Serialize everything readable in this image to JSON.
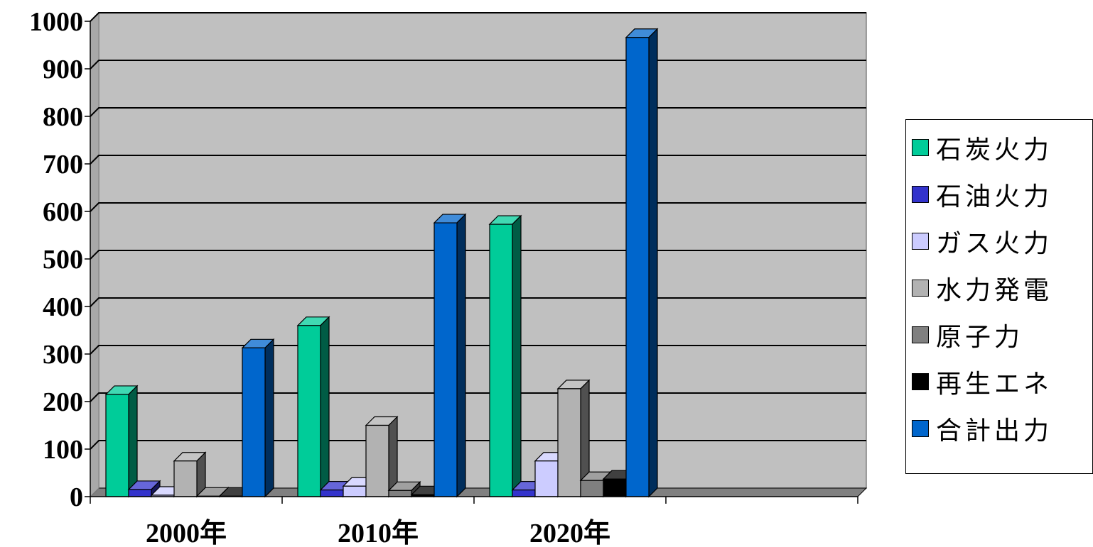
{
  "chart_data": {
    "type": "bar",
    "categories": [
      "2000年",
      "2010年",
      "2020年",
      ""
    ],
    "series": [
      {
        "name": "石炭火力",
        "color": "#00CC99",
        "values": [
          215,
          360,
          573,
          null
        ]
      },
      {
        "name": "石油火力",
        "color": "#3333CC",
        "values": [
          15,
          14,
          14,
          null
        ]
      },
      {
        "name": "ガス火力",
        "color": "#CCCCFF",
        "values": [
          3,
          22,
          75,
          null
        ]
      },
      {
        "name": "水力発電",
        "color": "#B2B2B2",
        "values": [
          75,
          150,
          227,
          null
        ]
      },
      {
        "name": "原子力",
        "color": "#808080",
        "values": [
          1,
          13,
          34,
          null
        ]
      },
      {
        "name": "再生エネ",
        "color": "#000000",
        "values": [
          1,
          4,
          37,
          null
        ]
      },
      {
        "name": "合計出力",
        "color": "#0066CC",
        "values": [
          313,
          576,
          966,
          null
        ]
      }
    ],
    "yticks": [
      "0",
      "100",
      "200",
      "300",
      "400",
      "500",
      "600",
      "700",
      "800",
      "900",
      "1000"
    ],
    "ylim": [
      0,
      1000
    ],
    "grid": true,
    "legend_position": "right",
    "background": "#C0C0C0"
  }
}
